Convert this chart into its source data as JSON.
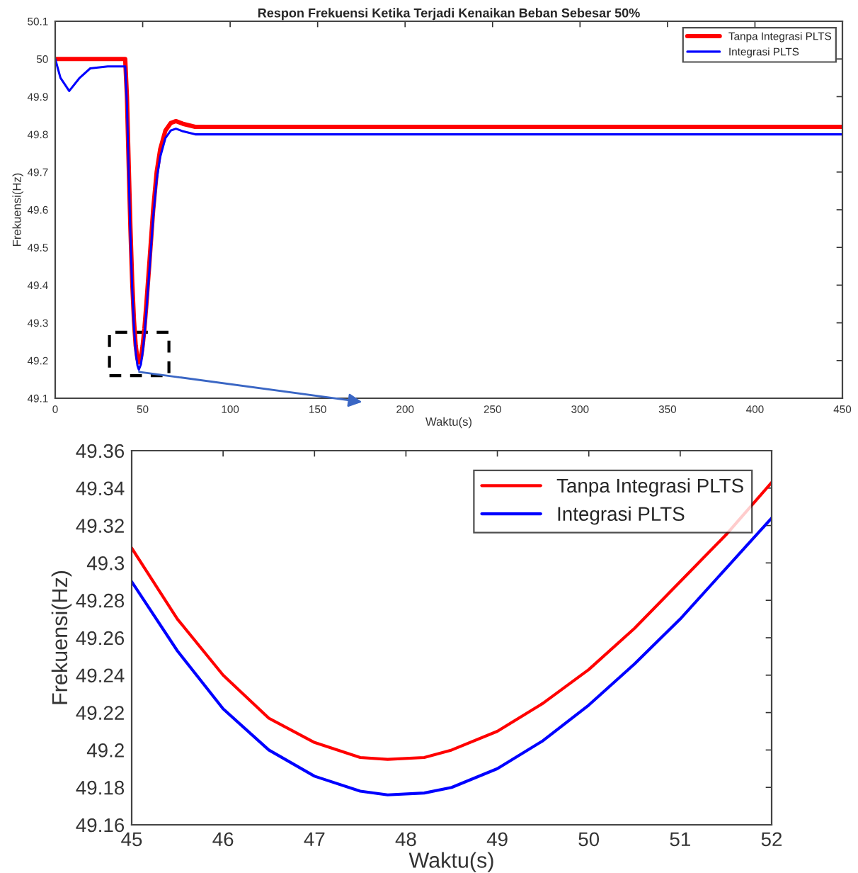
{
  "chart_data": [
    {
      "type": "line",
      "title": "Respon Frekuensi Ketika Terjadi Kenaikan Beban Sebesar 50%",
      "xlabel": "Waktu(s)",
      "ylabel": "Frekuensi(Hz)",
      "xlim": [
        0,
        450
      ],
      "xticks": [
        0,
        50,
        100,
        150,
        200,
        250,
        300,
        350,
        400,
        450
      ],
      "ylim": [
        49.1,
        50.1
      ],
      "yticks": [
        49.1,
        49.2,
        49.3,
        49.4,
        49.5,
        49.6,
        49.7,
        49.8,
        49.9,
        50,
        50.1
      ],
      "grid": false,
      "legend": "top right",
      "line_style": "solid",
      "series": [
        {
          "name": "Tanpa Integrasi PLTS",
          "color": "#ff0000",
          "x": [
            0,
            40,
            41,
            42,
            43,
            44,
            45,
            46,
            47,
            47.8,
            49,
            50,
            51,
            52,
            54,
            56,
            58,
            60,
            63,
            66,
            69,
            73,
            80,
            450
          ],
          "values": [
            50,
            50,
            49.9,
            49.72,
            49.55,
            49.41,
            49.308,
            49.24,
            49.205,
            49.195,
            49.208,
            49.24,
            49.285,
            49.343,
            49.47,
            49.6,
            49.7,
            49.76,
            49.81,
            49.83,
            49.835,
            49.828,
            49.82,
            49.82
          ]
        },
        {
          "name": "Integrasi PLTS",
          "color": "#0000ff",
          "x": [
            0,
            3,
            8,
            14,
            20,
            30,
            40,
            41,
            42,
            43,
            44,
            45,
            46,
            47,
            47.8,
            49,
            50,
            51,
            52,
            54,
            56,
            58,
            60,
            63,
            66,
            69,
            73,
            80,
            450
          ],
          "values": [
            50,
            49.95,
            49.915,
            49.95,
            49.975,
            49.98,
            49.98,
            49.88,
            49.7,
            49.53,
            49.39,
            49.29,
            49.222,
            49.187,
            49.176,
            49.19,
            49.223,
            49.268,
            49.325,
            49.45,
            49.58,
            49.68,
            49.74,
            49.79,
            49.81,
            49.815,
            49.808,
            49.8,
            49.8
          ]
        }
      ]
    },
    {
      "type": "line",
      "xlabel": "Waktu(s)",
      "ylabel": "Frekuensi(Hz)",
      "xlim": [
        45,
        52
      ],
      "xticks": [
        45,
        46,
        47,
        48,
        49,
        50,
        51,
        52
      ],
      "ylim": [
        49.16,
        49.36
      ],
      "yticks": [
        49.16,
        49.18,
        49.2,
        49.22,
        49.24,
        49.26,
        49.28,
        49.3,
        49.32,
        49.34,
        49.36
      ],
      "grid": false,
      "legend": "top right",
      "line_style": "solid",
      "series": [
        {
          "name": "Tanpa Integrasi PLTS",
          "color": "#ff0000",
          "x": [
            45,
            45.5,
            46,
            46.5,
            47,
            47.5,
            47.8,
            48.2,
            48.5,
            49,
            49.5,
            50,
            50.5,
            51,
            51.5,
            52
          ],
          "values": [
            49.308,
            49.27,
            49.24,
            49.217,
            49.204,
            49.196,
            49.195,
            49.196,
            49.2,
            49.21,
            49.225,
            49.243,
            49.265,
            49.29,
            49.315,
            49.343
          ]
        },
        {
          "name": "Integrasi PLTS",
          "color": "#0000ff",
          "x": [
            45,
            45.5,
            46,
            46.5,
            47,
            47.5,
            47.8,
            48.2,
            48.5,
            49,
            49.5,
            50,
            50.5,
            51,
            51.5,
            52
          ],
          "values": [
            49.29,
            49.253,
            49.222,
            49.2,
            49.186,
            49.178,
            49.176,
            49.177,
            49.18,
            49.19,
            49.205,
            49.224,
            49.246,
            49.27,
            49.297,
            49.324
          ]
        }
      ]
    }
  ]
}
